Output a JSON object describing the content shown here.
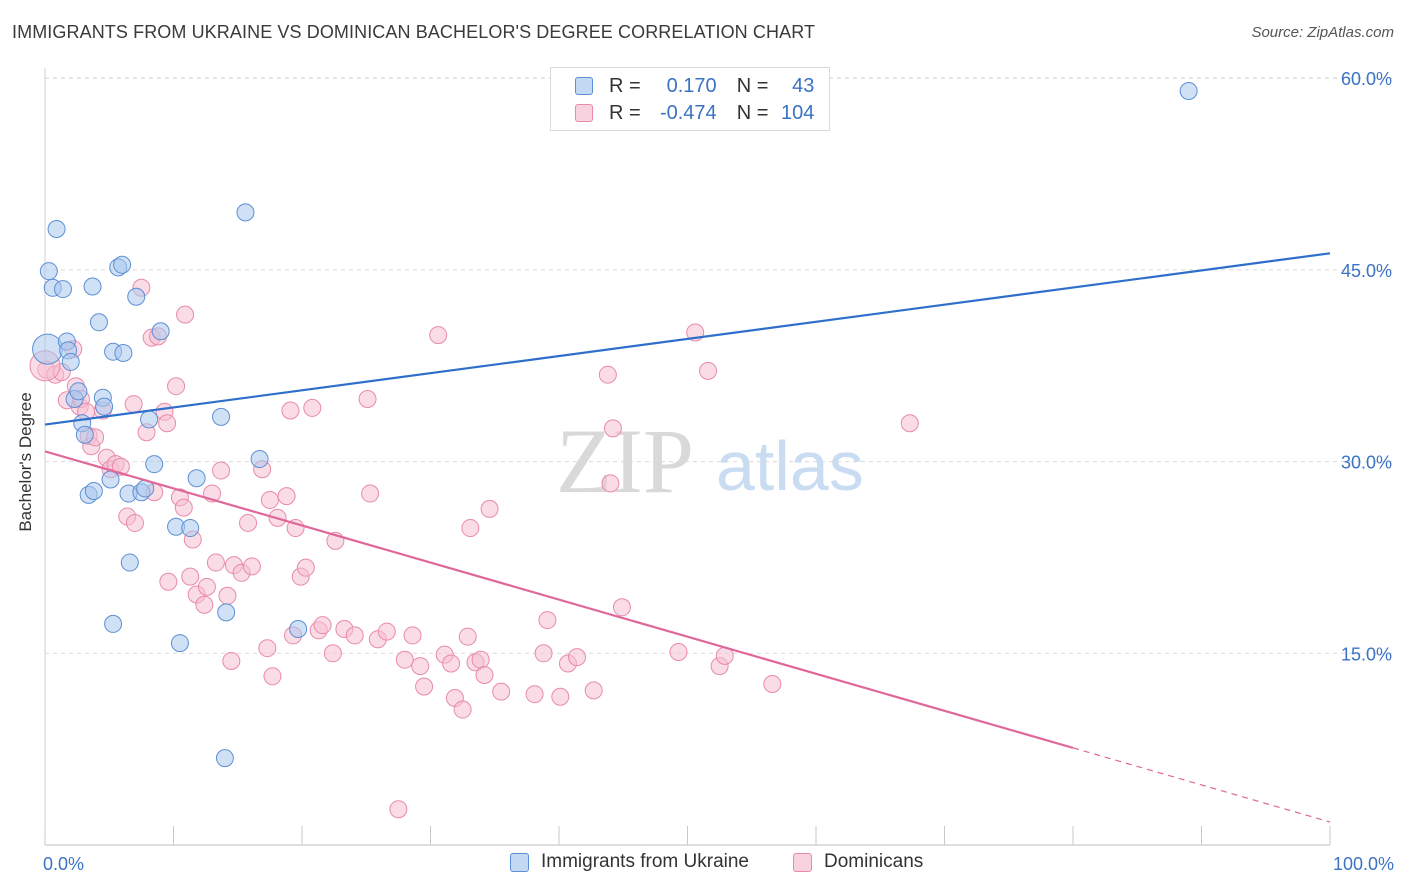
{
  "title": "IMMIGRANTS FROM UKRAINE VS DOMINICAN BACHELOR'S DEGREE CORRELATION CHART",
  "source": "Source: ZipAtlas.com",
  "watermark": {
    "zip": "ZIP",
    "atlas": "atlas"
  },
  "legend": {
    "r_label": "R =",
    "n_label": "N =",
    "rows": [
      {
        "r": "0.170",
        "n": "43"
      },
      {
        "r": "-0.474",
        "n": "104"
      }
    ]
  },
  "bottom_legend": [
    "Immigrants from Ukraine",
    "Dominicans"
  ],
  "colors": {
    "ukraine_fill": "#a9c8ee",
    "ukraine_stroke": "#5d8fd4",
    "ukraine_line": "#2f6fcc",
    "dominican_fill": "#f6bfd1",
    "dominican_stroke": "#e98aab",
    "dominican_line": "#e0679a",
    "tick_label": "#3b73c4",
    "grid": "#d9d9d9"
  },
  "chart_data": {
    "type": "scatter",
    "ylabel": "Bachelor's Degree",
    "xlabel": "",
    "xlim": [
      0,
      100
    ],
    "ylim": [
      0,
      65
    ],
    "x_tick_labels": [
      {
        "value": 0,
        "label": "0.0%"
      },
      {
        "value": 100,
        "label": "100.0%"
      }
    ],
    "y_tick_labels": [
      {
        "value": 15,
        "label": "15.0%"
      },
      {
        "value": 30,
        "label": "30.0%"
      },
      {
        "value": 45,
        "label": "45.0%"
      },
      {
        "value": 60,
        "label": "60.0%"
      }
    ],
    "grid": true,
    "legend_position": "top-center",
    "series": [
      {
        "name": "Immigrants from Ukraine",
        "points": [
          [
            0.2,
            38.8
          ],
          [
            0.3,
            44.9
          ],
          [
            0.6,
            43.6
          ],
          [
            0.9,
            48.2
          ],
          [
            1.4,
            43.5
          ],
          [
            1.7,
            39.4
          ],
          [
            1.8,
            38.7
          ],
          [
            2.0,
            37.8
          ],
          [
            2.3,
            34.9
          ],
          [
            2.6,
            35.5
          ],
          [
            2.9,
            33.0
          ],
          [
            3.1,
            32.1
          ],
          [
            3.4,
            27.4
          ],
          [
            3.7,
            43.7
          ],
          [
            3.8,
            27.7
          ],
          [
            4.2,
            40.9
          ],
          [
            4.5,
            35.0
          ],
          [
            4.6,
            34.3
          ],
          [
            5.1,
            28.6
          ],
          [
            5.3,
            38.6
          ],
          [
            5.3,
            17.3
          ],
          [
            5.7,
            45.2
          ],
          [
            6.0,
            45.4
          ],
          [
            6.1,
            38.5
          ],
          [
            6.5,
            27.5
          ],
          [
            6.6,
            22.1
          ],
          [
            7.1,
            42.9
          ],
          [
            7.5,
            27.6
          ],
          [
            7.8,
            27.9
          ],
          [
            8.1,
            33.3
          ],
          [
            8.5,
            29.8
          ],
          [
            9.0,
            40.2
          ],
          [
            10.2,
            24.9
          ],
          [
            10.5,
            15.8
          ],
          [
            11.3,
            24.8
          ],
          [
            11.8,
            28.7
          ],
          [
            13.7,
            33.5
          ],
          [
            14.1,
            18.2
          ],
          [
            14.0,
            6.8
          ],
          [
            15.6,
            49.5
          ],
          [
            16.7,
            30.2
          ],
          [
            19.7,
            16.9
          ],
          [
            89.0,
            59.0
          ]
        ]
      },
      {
        "name": "Dominicans",
        "points": [
          [
            0.1,
            37.2
          ],
          [
            0.8,
            36.8
          ],
          [
            1.3,
            37.0
          ],
          [
            1.7,
            34.8
          ],
          [
            2.2,
            38.8
          ],
          [
            2.4,
            35.9
          ],
          [
            2.7,
            34.3
          ],
          [
            2.8,
            34.9
          ],
          [
            3.2,
            33.9
          ],
          [
            3.4,
            32.0
          ],
          [
            3.6,
            31.2
          ],
          [
            3.9,
            31.9
          ],
          [
            4.5,
            34.0
          ],
          [
            4.8,
            30.3
          ],
          [
            5.1,
            29.4
          ],
          [
            5.5,
            29.8
          ],
          [
            5.9,
            29.6
          ],
          [
            6.4,
            25.7
          ],
          [
            6.9,
            34.5
          ],
          [
            7.0,
            25.2
          ],
          [
            7.5,
            43.6
          ],
          [
            7.9,
            32.3
          ],
          [
            8.3,
            39.7
          ],
          [
            8.5,
            27.6
          ],
          [
            8.8,
            39.8
          ],
          [
            9.3,
            33.9
          ],
          [
            9.5,
            33.0
          ],
          [
            9.6,
            20.6
          ],
          [
            10.2,
            35.9
          ],
          [
            10.5,
            27.2
          ],
          [
            10.8,
            26.4
          ],
          [
            10.9,
            41.5
          ],
          [
            11.3,
            21.0
          ],
          [
            11.5,
            23.9
          ],
          [
            11.8,
            19.6
          ],
          [
            12.4,
            18.8
          ],
          [
            12.6,
            20.2
          ],
          [
            13.0,
            27.5
          ],
          [
            13.3,
            22.1
          ],
          [
            13.7,
            29.3
          ],
          [
            14.2,
            19.5
          ],
          [
            14.5,
            14.4
          ],
          [
            14.7,
            21.9
          ],
          [
            15.3,
            21.3
          ],
          [
            15.8,
            25.2
          ],
          [
            16.1,
            21.8
          ],
          [
            16.9,
            29.4
          ],
          [
            17.3,
            15.4
          ],
          [
            17.5,
            27.0
          ],
          [
            17.7,
            13.2
          ],
          [
            18.1,
            25.6
          ],
          [
            18.8,
            27.3
          ],
          [
            19.1,
            34.0
          ],
          [
            19.3,
            16.4
          ],
          [
            19.5,
            24.8
          ],
          [
            19.9,
            21.0
          ],
          [
            20.3,
            21.7
          ],
          [
            20.8,
            34.2
          ],
          [
            21.3,
            16.8
          ],
          [
            21.6,
            17.2
          ],
          [
            22.4,
            15.0
          ],
          [
            22.6,
            23.8
          ],
          [
            23.3,
            16.9
          ],
          [
            24.1,
            16.4
          ],
          [
            25.1,
            34.9
          ],
          [
            25.3,
            27.5
          ],
          [
            25.9,
            16.1
          ],
          [
            26.6,
            16.7
          ],
          [
            27.5,
            2.8
          ],
          [
            28.0,
            14.5
          ],
          [
            28.6,
            16.4
          ],
          [
            29.2,
            14.0
          ],
          [
            29.5,
            12.4
          ],
          [
            30.6,
            39.9
          ],
          [
            31.1,
            14.9
          ],
          [
            31.6,
            14.2
          ],
          [
            31.9,
            11.5
          ],
          [
            32.5,
            10.6
          ],
          [
            32.9,
            16.3
          ],
          [
            33.5,
            14.3
          ],
          [
            33.9,
            14.5
          ],
          [
            33.1,
            24.8
          ],
          [
            34.2,
            13.3
          ],
          [
            34.6,
            26.3
          ],
          [
            35.5,
            12.0
          ],
          [
            38.1,
            11.8
          ],
          [
            38.8,
            15.0
          ],
          [
            39.1,
            17.6
          ],
          [
            40.1,
            11.6
          ],
          [
            40.7,
            14.2
          ],
          [
            41.4,
            14.7
          ],
          [
            42.7,
            12.1
          ],
          [
            43.8,
            36.8
          ],
          [
            44.0,
            28.3
          ],
          [
            44.2,
            32.6
          ],
          [
            44.9,
            18.6
          ],
          [
            49.3,
            15.1
          ],
          [
            50.6,
            40.1
          ],
          [
            51.6,
            37.1
          ],
          [
            52.5,
            14.0
          ],
          [
            52.9,
            14.8
          ],
          [
            56.6,
            12.6
          ],
          [
            67.3,
            33.0
          ],
          [
            0.0,
            37.5
          ]
        ]
      }
    ],
    "trend_lines": [
      {
        "series": "Immigrants from Ukraine",
        "x": [
          0,
          100
        ],
        "y": [
          32.9,
          46.3
        ]
      },
      {
        "series": "Dominicans",
        "x": [
          0,
          80
        ],
        "y": [
          30.8,
          7.6
        ],
        "dashed_extension": {
          "x": [
            80,
            100
          ],
          "y": [
            7.6,
            1.8
          ]
        }
      }
    ]
  }
}
